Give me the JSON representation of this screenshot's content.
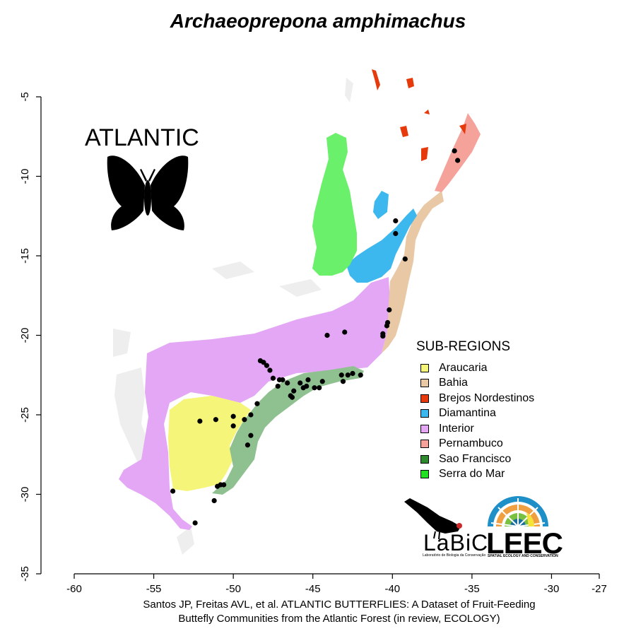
{
  "title": "Archaeoprepona amphimachus",
  "badge": "ATLANTIC",
  "legend": {
    "title": "SUB-REGIONS",
    "items": [
      {
        "label": "Araucaria",
        "color": "#f5f57a"
      },
      {
        "label": "Bahia",
        "color": "#e9c8a6"
      },
      {
        "label": "Brejos Nordestinos",
        "color": "#e63a0c"
      },
      {
        "label": "Diamantina",
        "color": "#3cb8ee"
      },
      {
        "label": "Interior",
        "color": "#e3a7f5"
      },
      {
        "label": "Pernambuco",
        "color": "#f5a29a"
      },
      {
        "label": "Sao Francisco",
        "color": "#2f8a2f"
      },
      {
        "label": "Serra do Mar",
        "color": "#22e022"
      }
    ]
  },
  "colors": {
    "sao_francisco_fill": "#8fc08f",
    "serra_do_mar_fill": "#6bf06b",
    "outside_gray": "#eeeeee",
    "record_point": "#000000"
  },
  "chart_data": {
    "type": "scatter",
    "x_ticks": [
      -60,
      -55,
      -50,
      -45,
      -40,
      -35,
      -30,
      -27
    ],
    "y_ticks": [
      -5,
      -10,
      -15,
      -20,
      -25,
      -30,
      -35
    ],
    "xlim": [
      -60,
      -27
    ],
    "ylim": [
      -35,
      -5
    ],
    "points": [
      [
        -36.1,
        -8.4
      ],
      [
        -35.9,
        -9.0
      ],
      [
        -39.8,
        -12.8
      ],
      [
        -39.8,
        -13.6
      ],
      [
        -39.2,
        -15.2
      ],
      [
        -40.2,
        -18.4
      ],
      [
        -40.3,
        -19.2
      ],
      [
        -40.35,
        -19.4
      ],
      [
        -40.6,
        -19.9
      ],
      [
        -40.6,
        -20.05
      ],
      [
        -43.0,
        -19.8
      ],
      [
        -44.1,
        -20.0
      ],
      [
        -42.0,
        -22.5
      ],
      [
        -42.5,
        -22.4
      ],
      [
        -42.8,
        -22.5
      ],
      [
        -43.2,
        -22.5
      ],
      [
        -43.1,
        -22.9
      ],
      [
        -44.4,
        -22.9
      ],
      [
        -44.6,
        -23.3
      ],
      [
        -44.9,
        -23.3
      ],
      [
        -45.3,
        -22.8
      ],
      [
        -45.4,
        -23.2
      ],
      [
        -45.8,
        -23.0
      ],
      [
        -45.6,
        -23.3
      ],
      [
        -46.2,
        -23.5
      ],
      [
        -46.4,
        -23.8
      ],
      [
        -46.3,
        -23.9
      ],
      [
        -46.6,
        -23.0
      ],
      [
        -46.9,
        -22.8
      ],
      [
        -47.1,
        -22.8
      ],
      [
        -47.2,
        -23.2
      ],
      [
        -47.5,
        -22.7
      ],
      [
        -47.7,
        -22.2
      ],
      [
        -47.9,
        -21.9
      ],
      [
        -48.1,
        -21.7
      ],
      [
        -48.3,
        -21.6
      ],
      [
        -48.5,
        -24.3
      ],
      [
        -48.9,
        -25.0
      ],
      [
        -49.3,
        -25.3
      ],
      [
        -48.9,
        -26.3
      ],
      [
        -49.1,
        -26.9
      ],
      [
        -50.0,
        -25.1
      ],
      [
        -50.0,
        -25.7
      ],
      [
        -51.1,
        -25.3
      ],
      [
        -52.1,
        -25.4
      ],
      [
        -50.6,
        -29.4
      ],
      [
        -50.8,
        -29.4
      ],
      [
        -51.0,
        -29.5
      ],
      [
        -51.2,
        -30.4
      ],
      [
        -52.4,
        -31.8
      ],
      [
        -53.8,
        -29.8
      ]
    ]
  },
  "credit": {
    "line1": "Santos JP, Freitas AVL, et al. ATLANTIC BUTTERFLIES: A Dataset of Fruit-Feeding",
    "line2": "Buttefly Communities from the Atlantic Forest (in review, ECOLOGY)"
  },
  "logos": {
    "labic": "LaBiC",
    "labic_sub": "Laboratório de Biologia da Conservação",
    "leec": "LEEC",
    "leec_sub": "SPATIAL ECOLOGY AND CONSERVATION"
  }
}
